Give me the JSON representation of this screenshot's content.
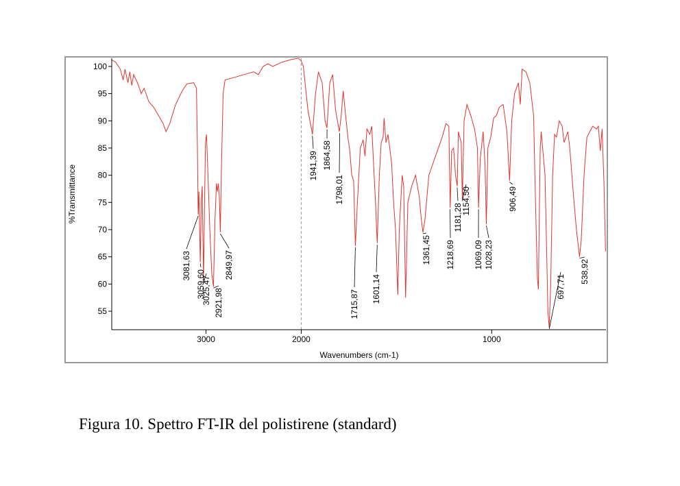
{
  "chart_data": {
    "type": "line",
    "title": "Figura 10. Spettro FT-IR  del polistirene (standard)",
    "x_label": "Wavenumbers (cm-1)",
    "y_label": "%Transmittance",
    "color": "#e0332b",
    "xlim": [
      3990,
      400
    ],
    "x_break": 2000,
    "xticks": [
      3000,
      2000,
      1000
    ],
    "ylim": [
      51.6,
      101.5
    ],
    "yticks": [
      55,
      60,
      65,
      70,
      75,
      80,
      85,
      90,
      95,
      100
    ],
    "x": [
      3990,
      3950,
      3900,
      3870,
      3850,
      3820,
      3800,
      3780,
      3760,
      3720,
      3680,
      3650,
      3600,
      3550,
      3500,
      3450,
      3420,
      3380,
      3320,
      3250,
      3200,
      3130,
      3100,
      3090,
      3082,
      3075,
      3060,
      3050,
      3040,
      3026,
      3015,
      3005,
      2995,
      2985,
      2960,
      2940,
      2922,
      2905,
      2890,
      2880,
      2870,
      2860,
      2850,
      2840,
      2820,
      2800,
      2700,
      2600,
      2500,
      2450,
      2400,
      2350,
      2300,
      2200,
      2100,
      2030,
      2000,
      1989,
      1980,
      1965,
      1941,
      1925,
      1910,
      1890,
      1875,
      1865,
      1850,
      1835,
      1820,
      1800,
      1790,
      1780,
      1770,
      1755,
      1745,
      1735,
      1725,
      1716,
      1705,
      1690,
      1675,
      1665,
      1655,
      1640,
      1630,
      1620,
      1610,
      1601,
      1590,
      1580,
      1570,
      1565,
      1555,
      1545,
      1535,
      1525,
      1515,
      1505,
      1493,
      1485,
      1470,
      1462,
      1452,
      1440,
      1420,
      1400,
      1380,
      1370,
      1361,
      1350,
      1330,
      1310,
      1290,
      1260,
      1240,
      1225,
      1218,
      1210,
      1200,
      1190,
      1181,
      1175,
      1160,
      1154,
      1145,
      1130,
      1110,
      1090,
      1075,
      1069,
      1060,
      1045,
      1035,
      1028,
      1020,
      1005,
      990,
      975,
      960,
      940,
      920,
      906,
      895,
      880,
      860,
      850,
      840,
      820,
      800,
      780,
      770,
      760,
      755,
      750,
      745,
      740,
      720,
      705,
      698,
      690,
      680,
      670,
      660,
      645,
      630,
      620,
      600,
      590,
      570,
      555,
      539,
      530,
      515,
      500,
      485,
      470,
      450,
      440,
      430,
      420,
      410,
      402
    ],
    "values": [
      101.2,
      100.8,
      99.5,
      97.5,
      99.5,
      97,
      99,
      96.5,
      98.5,
      97,
      95,
      96,
      93.5,
      92.5,
      91,
      89.5,
      88,
      89.5,
      93,
      95.5,
      96.8,
      97,
      96,
      85,
      72.8,
      77,
      64,
      75,
      78,
      60.5,
      75,
      86,
      87.5,
      83,
      70,
      62,
      59.5,
      72,
      78.5,
      77,
      78.5,
      76,
      69.5,
      80,
      95,
      97.5,
      98,
      98.5,
      99,
      98.5,
      100,
      100.5,
      100,
      100.8,
      101.3,
      101.5,
      101,
      100,
      97,
      92,
      87.5,
      95,
      99,
      97,
      90,
      88.7,
      97,
      98.5,
      92,
      88,
      91,
      95.5,
      92,
      87,
      84.5,
      80,
      79,
      67,
      75,
      85,
      86.5,
      83.5,
      88.5,
      87.5,
      89,
      82,
      75,
      67.5,
      80,
      86,
      87,
      90.5,
      86,
      87.5,
      85,
      82,
      75,
      70,
      58,
      70,
      80,
      78,
      57.5,
      75,
      78,
      80,
      76,
      72,
      69.5,
      72,
      80,
      82,
      84,
      87,
      89.5,
      89,
      74,
      84.5,
      85,
      80,
      78,
      88,
      86,
      75.5,
      90,
      93,
      91,
      88.5,
      85,
      74,
      83,
      88,
      82,
      71,
      85,
      87,
      90.5,
      91,
      92.5,
      93,
      88,
      79,
      90,
      95,
      97,
      93,
      99.5,
      99,
      97,
      91,
      75,
      61,
      59,
      73,
      85,
      88,
      80,
      55,
      52,
      60,
      80,
      87.5,
      87,
      90,
      89,
      86,
      88,
      85,
      76,
      70,
      65,
      68,
      80,
      87,
      88,
      89,
      88.5,
      89,
      84.5,
      88.5,
      78,
      66
    ],
    "annotations": [
      {
        "text": "3081,63",
        "x": 3081.63,
        "y": 72.8
      },
      {
        "text": "3059,60",
        "x": 3059.6,
        "y": 64
      },
      {
        "text": "3025,47",
        "x": 3025.47,
        "y": 60.5
      },
      {
        "text": "2921,98",
        "x": 2921.98,
        "y": 59.5
      },
      {
        "text": "2849,97",
        "x": 2849.97,
        "y": 69.5
      },
      {
        "text": "1941,39",
        "x": 1941.39,
        "y": 87.5
      },
      {
        "text": "1864,58",
        "x": 1864.58,
        "y": 88.7
      },
      {
        "text": "1798,01",
        "x": 1798.01,
        "y": 88
      },
      {
        "text": "1715,87",
        "x": 1715.87,
        "y": 67
      },
      {
        "text": "1601,14",
        "x": 1601.14,
        "y": 67.5
      },
      {
        "text": "1361,45",
        "x": 1361.45,
        "y": 69.5
      },
      {
        "text": "1218,69",
        "x": 1218.69,
        "y": 74
      },
      {
        "text": "1181,28",
        "x": 1181.28,
        "y": 78
      },
      {
        "text": "1154,50",
        "x": 1154.5,
        "y": 75.5
      },
      {
        "text": "1069,09",
        "x": 1069.09,
        "y": 74
      },
      {
        "text": "1028,23",
        "x": 1028.23,
        "y": 71
      },
      {
        "text": "906,49",
        "x": 906.49,
        "y": 79
      },
      {
        "text": "697,71",
        "x": 697.71,
        "y": 52
      },
      {
        "text": "538,92",
        "x": 538.92,
        "y": 65
      }
    ]
  }
}
